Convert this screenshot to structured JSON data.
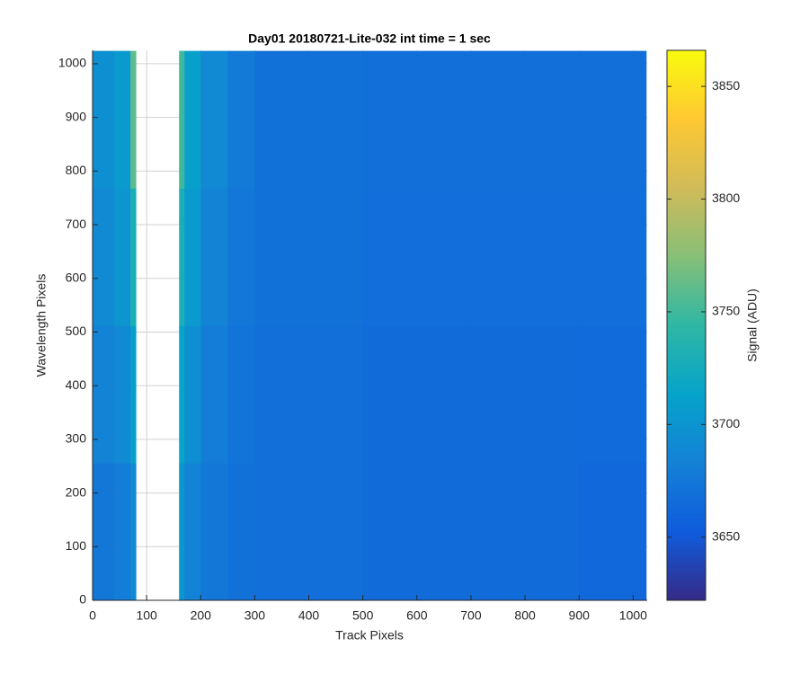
{
  "chart_data": {
    "type": "heatmap",
    "title": "Day01 20180721-Lite-032 int time = 1 sec",
    "x_label": "Track Pixels",
    "y_label": "Wavelength Pixels",
    "colorbar_label": "Signal (ADU)",
    "x_edges": [
      0,
      40,
      70,
      80,
      160,
      170,
      200,
      250,
      300,
      500,
      700,
      900,
      1024
    ],
    "y_edges": [
      0,
      256,
      512,
      768,
      1024
    ],
    "values": [
      [
        3675,
        3680,
        3690,
        null,
        3700,
        3685,
        3675,
        3670,
        3668,
        3666,
        3666,
        3662
      ],
      [
        3685,
        3690,
        3710,
        null,
        3715,
        3695,
        3680,
        3672,
        3668,
        3666,
        3666,
        3665
      ],
      [
        3690,
        3700,
        3730,
        null,
        3730,
        3705,
        3685,
        3675,
        3670,
        3667,
        3667,
        3667
      ],
      [
        3695,
        3705,
        3760,
        null,
        3750,
        3710,
        3690,
        3678,
        3670,
        3668,
        3668,
        3668
      ]
    ],
    "xlim": [
      0,
      1026
    ],
    "ylim": [
      0,
      1025
    ],
    "xticks": [
      0,
      100,
      200,
      300,
      400,
      500,
      600,
      700,
      800,
      900,
      1000
    ],
    "yticks": [
      0,
      100,
      200,
      300,
      400,
      500,
      600,
      700,
      800,
      900,
      1000
    ],
    "clim": [
      3622,
      3866
    ],
    "cticks": [
      3650,
      3700,
      3750,
      3800,
      3850
    ],
    "colormap": [
      "#352a87",
      "#0f5cdd",
      "#1481d6",
      "#06a4ca",
      "#2eb7a4",
      "#87bf77",
      "#d1bb59",
      "#fec832",
      "#f9fb0e"
    ],
    "grid": true
  }
}
